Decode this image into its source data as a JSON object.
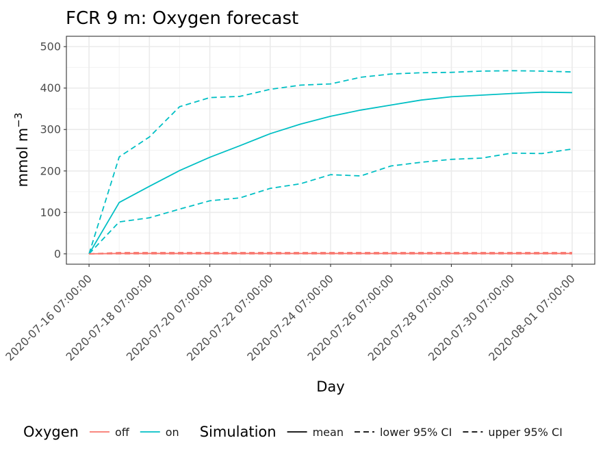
{
  "chart_data": {
    "type": "line",
    "title": "FCR 9 m: Oxygen forecast",
    "xlabel": "Day",
    "ylabel_main": "mmol m",
    "ylabel_sup": "−3",
    "ylim": [
      -25,
      525
    ],
    "yticks": [
      0,
      100,
      200,
      300,
      400,
      500
    ],
    "x": [
      0,
      1,
      2,
      3,
      4,
      5,
      6,
      7,
      8,
      9,
      10,
      11,
      12,
      13,
      14,
      15,
      16
    ],
    "xlim": [
      -0.75,
      16.75
    ],
    "xticks": [
      0,
      2,
      4,
      6,
      8,
      10,
      12,
      14,
      16
    ],
    "xtick_labels": [
      "2020-07-16 07:00:00",
      "2020-07-18 07:00:00",
      "2020-07-20 07:00:00",
      "2020-07-22 07:00:00",
      "2020-07-24 07:00:00",
      "2020-07-26 07:00:00",
      "2020-07-28 07:00:00",
      "2020-07-30 07:00:00",
      "2020-08-01 07:00:00"
    ],
    "grid": true,
    "series": [
      {
        "name": "on mean",
        "oxygen": "on",
        "simulation": "mean",
        "color": "#00BFC4",
        "dash": "",
        "values": [
          0,
          124,
          163,
          201,
          233,
          261,
          290,
          313,
          332,
          347,
          359,
          371,
          379,
          383,
          387,
          390,
          389
        ]
      },
      {
        "name": "on lower 95% CI",
        "oxygen": "on",
        "simulation": "lower 95% CI",
        "color": "#00BFC4",
        "dash": "8,5",
        "values": [
          0,
          77,
          87,
          108,
          128,
          135,
          158,
          169,
          191,
          188,
          212,
          221,
          228,
          231,
          243,
          242,
          253
        ]
      },
      {
        "name": "on upper 95% CI",
        "oxygen": "on",
        "simulation": "upper 95% CI",
        "color": "#00BFC4",
        "dash": "8,5",
        "values": [
          0,
          234,
          282,
          355,
          377,
          380,
          397,
          407,
          410,
          426,
          434,
          437,
          438,
          441,
          442,
          441,
          439
        ]
      },
      {
        "name": "off mean",
        "oxygen": "off",
        "simulation": "mean",
        "color": "#F8766D",
        "dash": "",
        "values": [
          0,
          1,
          1,
          1,
          1,
          1,
          1,
          1,
          1,
          1,
          1,
          1,
          1,
          1,
          1,
          1,
          1
        ]
      },
      {
        "name": "off lower 95% CI",
        "oxygen": "off",
        "simulation": "lower 95% CI",
        "color": "#F8766D",
        "dash": "8,5",
        "values": [
          0,
          0,
          0,
          0,
          0,
          0,
          0,
          0,
          0,
          0,
          0,
          0,
          0,
          0,
          0,
          0,
          0
        ]
      },
      {
        "name": "off upper 95% CI",
        "oxygen": "off",
        "simulation": "upper 95% CI",
        "color": "#F8766D",
        "dash": "8,5",
        "values": [
          0,
          3,
          3,
          3,
          3,
          3,
          3,
          3,
          3,
          3,
          3,
          3,
          3,
          3,
          3,
          3,
          3
        ]
      }
    ],
    "legend": {
      "placement": "bottom",
      "groups": [
        {
          "title": "Oxygen",
          "items": [
            {
              "label": "off",
              "color": "#F8766D",
              "dash": ""
            },
            {
              "label": "on",
              "color": "#00BFC4",
              "dash": ""
            }
          ]
        },
        {
          "title": "Simulation",
          "items": [
            {
              "label": "mean",
              "color": "#000000",
              "dash": ""
            },
            {
              "label": "lower 95% CI",
              "color": "#000000",
              "dash": "8,5"
            },
            {
              "label": "upper 95% CI",
              "color": "#000000",
              "dash": "8,5"
            }
          ]
        }
      ]
    }
  }
}
